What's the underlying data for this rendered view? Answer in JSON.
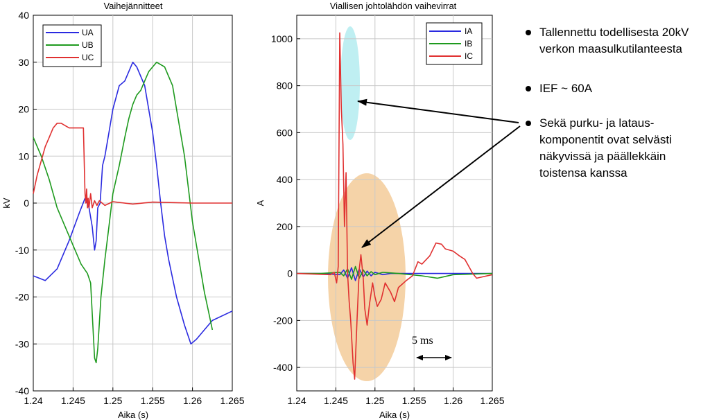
{
  "chart_data": [
    {
      "type": "line",
      "title": "Vaihejännitteet",
      "xlabel": "Aika (s)",
      "ylabel": "kV",
      "xlim": [
        1.24,
        1.265
      ],
      "ylim": [
        -40,
        40
      ],
      "xticks": [
        "1.24",
        "1.245",
        "1.25",
        "1.255",
        "1.26",
        "1.265"
      ],
      "yticks": [
        "40",
        "30",
        "20",
        "10",
        "0",
        "-10",
        "-20",
        "-30",
        "-40"
      ],
      "grid": true,
      "legend_position": "top-left",
      "series": [
        {
          "name": "UA",
          "color": "#2a2ae0",
          "points": [
            [
              1.24,
              -15.5
            ],
            [
              1.2415,
              -16.5
            ],
            [
              1.243,
              -14
            ],
            [
              1.2445,
              -8
            ],
            [
              1.2458,
              -2
            ],
            [
              1.2465,
              1
            ],
            [
              1.247,
              -1
            ],
            [
              1.2474,
              -5
            ],
            [
              1.2477,
              -10
            ],
            [
              1.2479,
              -8
            ],
            [
              1.2481,
              -1
            ],
            [
              1.2484,
              0
            ],
            [
              1.2487,
              8
            ],
            [
              1.249,
              10
            ],
            [
              1.2495,
              15
            ],
            [
              1.25,
              20
            ],
            [
              1.2508,
              25
            ],
            [
              1.2515,
              26
            ],
            [
              1.2525,
              30
            ],
            [
              1.253,
              29
            ],
            [
              1.254,
              25
            ],
            [
              1.255,
              15
            ],
            [
              1.2555,
              8
            ],
            [
              1.256,
              0
            ],
            [
              1.2565,
              -7
            ],
            [
              1.257,
              -12
            ],
            [
              1.2575,
              -16
            ],
            [
              1.258,
              -20
            ],
            [
              1.259,
              -26
            ],
            [
              1.2598,
              -30
            ],
            [
              1.2605,
              -29
            ],
            [
              1.2615,
              -27
            ],
            [
              1.2625,
              -25
            ],
            [
              1.265,
              -23
            ]
          ]
        },
        {
          "name": "UB",
          "color": "#1e9a1e",
          "points": [
            [
              1.24,
              14
            ],
            [
              1.241,
              10
            ],
            [
              1.242,
              5
            ],
            [
              1.243,
              -1
            ],
            [
              1.244,
              -5
            ],
            [
              1.245,
              -9
            ],
            [
              1.246,
              -13
            ],
            [
              1.2468,
              -15
            ],
            [
              1.2472,
              -17
            ],
            [
              1.2477,
              -33
            ],
            [
              1.2479,
              -34
            ],
            [
              1.2481,
              -31
            ],
            [
              1.2485,
              -20
            ],
            [
              1.249,
              -12
            ],
            [
              1.2495,
              -5
            ],
            [
              1.25,
              2
            ],
            [
              1.2508,
              8
            ],
            [
              1.2515,
              14
            ],
            [
              1.252,
              18
            ],
            [
              1.2525,
              21
            ],
            [
              1.253,
              23
            ],
            [
              1.2535,
              24
            ],
            [
              1.254,
              26
            ],
            [
              1.2545,
              28
            ],
            [
              1.255,
              29
            ],
            [
              1.2555,
              30
            ],
            [
              1.2565,
              29
            ],
            [
              1.2575,
              25
            ],
            [
              1.258,
              20
            ],
            [
              1.259,
              10
            ],
            [
              1.26,
              -4
            ],
            [
              1.261,
              -14
            ],
            [
              1.2615,
              -19
            ],
            [
              1.262,
              -23
            ],
            [
              1.2625,
              -27
            ]
          ]
        },
        {
          "name": "UC",
          "color": "#e03030",
          "points": [
            [
              1.24,
              2
            ],
            [
              1.2405,
              6
            ],
            [
              1.241,
              9
            ],
            [
              1.2415,
              12
            ],
            [
              1.242,
              14
            ],
            [
              1.2425,
              16
            ],
            [
              1.243,
              17
            ],
            [
              1.2435,
              17
            ],
            [
              1.244,
              16.5
            ],
            [
              1.2445,
              16
            ],
            [
              1.2463,
              16
            ],
            [
              1.2465,
              2
            ],
            [
              1.2466,
              0
            ],
            [
              1.2467,
              3
            ],
            [
              1.2468,
              -1
            ],
            [
              1.2469,
              1
            ],
            [
              1.247,
              -1
            ],
            [
              1.2472,
              2
            ],
            [
              1.2474,
              -1
            ],
            [
              1.2477,
              0.5
            ],
            [
              1.248,
              -0.5
            ],
            [
              1.2483,
              0.5
            ],
            [
              1.249,
              -0.5
            ],
            [
              1.25,
              0.3
            ],
            [
              1.2525,
              -0.2
            ],
            [
              1.255,
              0.2
            ],
            [
              1.26,
              0
            ],
            [
              1.265,
              0
            ]
          ]
        }
      ]
    },
    {
      "type": "line",
      "title": "Viallisen johtolähdön vaihevirrat",
      "xlabel": "Aika (s)",
      "ylabel": "A",
      "xlim": [
        1.24,
        1.265
      ],
      "ylim": [
        -500,
        1100
      ],
      "xticks": [
        "1.24",
        "1.245",
        "1.25",
        "1.255",
        "1.26",
        "1.265"
      ],
      "yticks": [
        "1000",
        "800",
        "600",
        "400",
        "200",
        "0",
        "-200",
        "-400"
      ],
      "grid": true,
      "legend_position": "top-right",
      "annotation": "5 ms",
      "series": [
        {
          "name": "IA",
          "color": "#2a2ae0",
          "points": [
            [
              1.24,
              0
            ],
            [
              1.243,
              0
            ],
            [
              1.2455,
              -5
            ],
            [
              1.246,
              15
            ],
            [
              1.2465,
              -20
            ],
            [
              1.247,
              25
            ],
            [
              1.2475,
              -30
            ],
            [
              1.248,
              20
            ],
            [
              1.2485,
              -15
            ],
            [
              1.249,
              10
            ],
            [
              1.2495,
              -10
            ],
            [
              1.25,
              5
            ],
            [
              1.251,
              -5
            ],
            [
              1.252,
              0
            ],
            [
              1.255,
              0
            ],
            [
              1.265,
              0
            ]
          ]
        },
        {
          "name": "IB",
          "color": "#1e9a1e",
          "points": [
            [
              1.24,
              0
            ],
            [
              1.243,
              0
            ],
            [
              1.2455,
              5
            ],
            [
              1.246,
              -10
            ],
            [
              1.2465,
              20
            ],
            [
              1.247,
              -25
            ],
            [
              1.2475,
              30
            ],
            [
              1.248,
              -20
            ],
            [
              1.2485,
              15
            ],
            [
              1.249,
              -10
            ],
            [
              1.2495,
              8
            ],
            [
              1.25,
              -5
            ],
            [
              1.251,
              5
            ],
            [
              1.253,
              0
            ],
            [
              1.256,
              -10
            ],
            [
              1.258,
              -20
            ],
            [
              1.26,
              -5
            ],
            [
              1.265,
              0
            ]
          ]
        },
        {
          "name": "IC",
          "color": "#e03030",
          "points": [
            [
              1.24,
              0
            ],
            [
              1.2443,
              -5
            ],
            [
              1.2448,
              5
            ],
            [
              1.2451,
              -40
            ],
            [
              1.2453,
              30
            ],
            [
              1.2455,
              1025
            ],
            [
              1.2457,
              700
            ],
            [
              1.2459,
              550
            ],
            [
              1.2461,
              200
            ],
            [
              1.2463,
              430
            ],
            [
              1.2465,
              0
            ],
            [
              1.2467,
              -120
            ],
            [
              1.2469,
              -200
            ],
            [
              1.2472,
              -380
            ],
            [
              1.2474,
              -450
            ],
            [
              1.2477,
              -200
            ],
            [
              1.248,
              20
            ],
            [
              1.2482,
              80
            ],
            [
              1.2485,
              -20
            ],
            [
              1.2487,
              -150
            ],
            [
              1.249,
              -220
            ],
            [
              1.2493,
              -130
            ],
            [
              1.2497,
              -40
            ],
            [
              1.25,
              -100
            ],
            [
              1.2503,
              -140
            ],
            [
              1.2508,
              -110
            ],
            [
              1.2513,
              -40
            ],
            [
              1.252,
              -80
            ],
            [
              1.2525,
              -120
            ],
            [
              1.253,
              -60
            ],
            [
              1.254,
              -30
            ],
            [
              1.2548,
              -10
            ],
            [
              1.2555,
              50
            ],
            [
              1.256,
              40
            ],
            [
              1.257,
              75
            ],
            [
              1.2578,
              130
            ],
            [
              1.2585,
              125
            ],
            [
              1.259,
              105
            ],
            [
              1.26,
              95
            ],
            [
              1.2608,
              75
            ],
            [
              1.2615,
              60
            ],
            [
              1.262,
              30
            ],
            [
              1.2625,
              0
            ],
            [
              1.263,
              -20
            ],
            [
              1.265,
              -5
            ]
          ]
        }
      ]
    }
  ],
  "notes": {
    "n1": [
      "Tallennettu todellisesta 20kV",
      "verkon maasulkutilanteesta"
    ],
    "n2": [
      "IEF ~ 60A"
    ],
    "n3": [
      "Sekä purku- ja lataus-",
      "komponentit ovat selvästi",
      "näkyvissä ja päällekkäin",
      "toistensa kanssa"
    ]
  },
  "colors": {
    "grid": "#c8c8c8",
    "cyan_highlight": "#bfeff2",
    "orange_highlight": "#f5d3a8"
  }
}
